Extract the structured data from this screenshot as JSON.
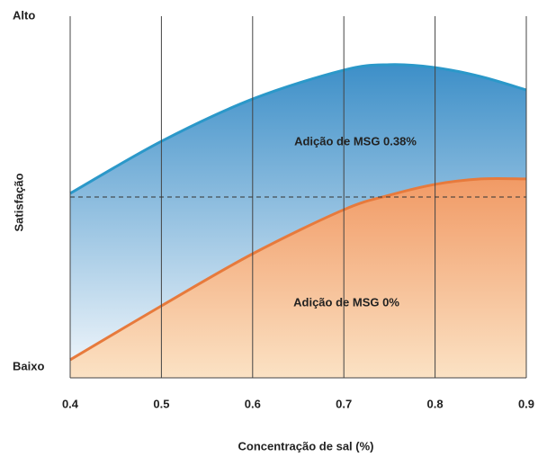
{
  "chart_data": {
    "type": "area",
    "x_label": "Concentração de sal (%)",
    "y_label": "Satisfação",
    "x": [
      0.4,
      0.5,
      0.6,
      0.7,
      0.75,
      0.8,
      0.85,
      0.9
    ],
    "series": [
      {
        "name": "Adição de MSG 0.38%",
        "color": "#2b98c9",
        "values": [
          0.51,
          0.654,
          0.771,
          0.851,
          0.866,
          0.858,
          0.833,
          0.796
        ]
      },
      {
        "name": "Adição de MSG 0%",
        "color": "#e77a3c",
        "values": [
          0.05,
          0.199,
          0.343,
          0.465,
          0.505,
          0.535,
          0.55,
          0.55
        ]
      }
    ],
    "reference_line": 0.5,
    "xlim": [
      0.4,
      0.9
    ],
    "xticks": [
      0.4,
      0.5,
      0.6,
      0.7,
      0.8,
      0.9
    ],
    "ylim": [
      0,
      1
    ],
    "yticks": [
      {
        "value": 0.03,
        "label": "Baixo"
      },
      {
        "value": 1,
        "label": "Alto"
      }
    ],
    "grid": true
  }
}
